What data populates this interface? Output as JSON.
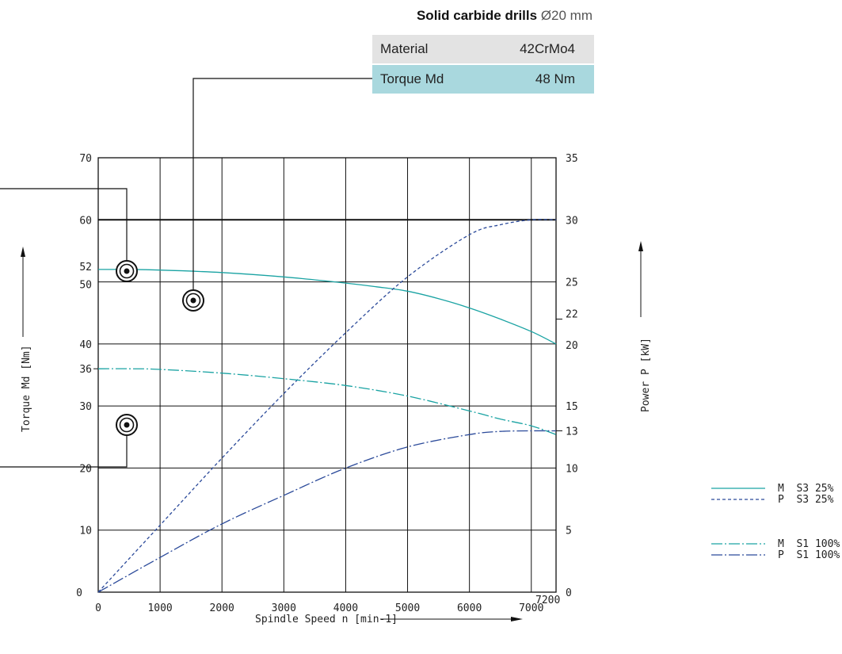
{
  "info": {
    "title_bold": "Solid carbide drills",
    "title_rest": "Ø20 mm",
    "rows": [
      {
        "label": "Material",
        "value": "42CrMo4"
      },
      {
        "label": "Torque Md",
        "value": "48 Nm"
      }
    ]
  },
  "chart_data": {
    "type": "line",
    "xlabel": "Spindle Speed n [min-1]",
    "ylabel_left": "Torque  Md [Nm]",
    "ylabel_right": "Power  P [kW]",
    "x_range": [
      0,
      7400
    ],
    "x_ticks": [
      "0",
      "1000",
      "2000",
      "3000",
      "4000",
      "5000",
      "6000",
      "7000"
    ],
    "x_extra_tick": "7200",
    "y_left_range": [
      0,
      70
    ],
    "y_left_ticks": [
      "0",
      "10",
      "20",
      "30",
      "36",
      "40",
      "50",
      "52",
      "60",
      "70"
    ],
    "y_right_range": [
      0,
      35
    ],
    "y_right_ticks": [
      "0",
      "5",
      "10",
      "13",
      "15",
      "20",
      "22",
      "25",
      "30",
      "35"
    ],
    "grid": true,
    "colors": {
      "teal": "#1aa3a3",
      "blue": "#2b4a9a"
    },
    "series": [
      {
        "name": "M  S3 25%",
        "axis": "left",
        "style": "solid",
        "color": "teal",
        "x": [
          0,
          500,
          1000,
          2000,
          3000,
          4000,
          4500,
          5000,
          5500,
          6000,
          6500,
          7000,
          7400
        ],
        "y": [
          52,
          52,
          51.9,
          51.5,
          50.8,
          49.8,
          49.2,
          48.5,
          47.3,
          45.8,
          44,
          42,
          40
        ]
      },
      {
        "name": "P  S3 25%",
        "axis": "right",
        "style": "dash",
        "color": "blue",
        "x": [
          0,
          1000,
          2000,
          3000,
          4000,
          5000,
          6000,
          6500,
          7000,
          7400
        ],
        "y": [
          0,
          5.4,
          10.8,
          16,
          20.9,
          25.4,
          28.8,
          29.6,
          30,
          30
        ]
      },
      {
        "name": "M  S1 100%",
        "axis": "left",
        "style": "dashdot",
        "color": "teal",
        "x": [
          0,
          500,
          1000,
          2000,
          3000,
          4000,
          5000,
          6000,
          6500,
          7000,
          7400
        ],
        "y": [
          36,
          36,
          35.9,
          35.3,
          34.4,
          33.3,
          31.6,
          29.2,
          27.9,
          26.8,
          25.4
        ]
      },
      {
        "name": "P  S1 100%",
        "axis": "right",
        "style": "dashdot",
        "color": "blue",
        "x": [
          0,
          1000,
          2000,
          3000,
          4000,
          5000,
          6000,
          6500,
          7000,
          7400
        ],
        "y": [
          0,
          2.8,
          5.5,
          7.8,
          10,
          11.7,
          12.7,
          12.95,
          13,
          13
        ]
      }
    ],
    "legend": [
      {
        "label": "M  S3 25%"
      },
      {
        "label": "P  S3 25%"
      },
      {
        "label": "M  S1 100%"
      },
      {
        "label": "P  S1 100%"
      }
    ]
  }
}
